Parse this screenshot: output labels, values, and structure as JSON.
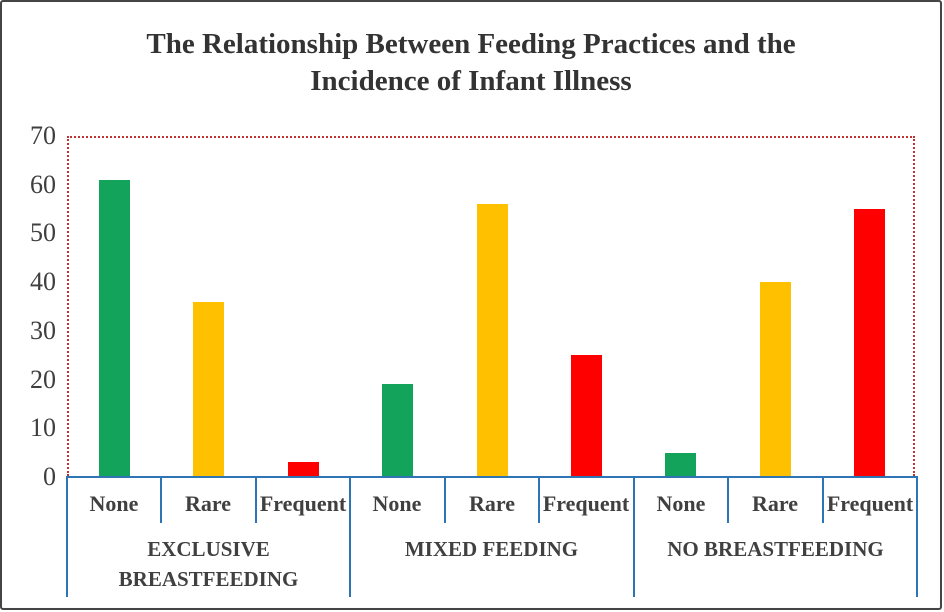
{
  "title": {
    "line1": "The Relationship Between Feeding Practices and the",
    "line2": "Incidence of Infant Illness"
  },
  "chart_data": {
    "type": "bar",
    "title": "The Relationship Between Feeding Practices and the Incidence of Infant Illness",
    "ylabel": "",
    "xlabel": "",
    "ylim": [
      0,
      70
    ],
    "y_ticks": [
      0,
      10,
      20,
      30,
      40,
      50,
      60,
      70
    ],
    "grid": false,
    "legend": false,
    "categories_per_group": [
      "None",
      "Rare",
      "Frequent"
    ],
    "groups": [
      {
        "label": "EXCLUSIVE BREASTFEEDING",
        "values": [
          61,
          36,
          3
        ]
      },
      {
        "label": "MIXED FEEDING",
        "values": [
          19,
          56,
          25
        ]
      },
      {
        "label": "NO BREASTFEEDING",
        "values": [
          5,
          40,
          55
        ]
      }
    ],
    "bar_colors": [
      "#14a35a",
      "#ffc000",
      "#fe0000"
    ],
    "colors": {
      "plot_border": "#c33232",
      "axis_blue": "#2e75b6",
      "label_text": "#404040",
      "tick_text": "#3f3f3f",
      "title_text": "#333333"
    }
  }
}
